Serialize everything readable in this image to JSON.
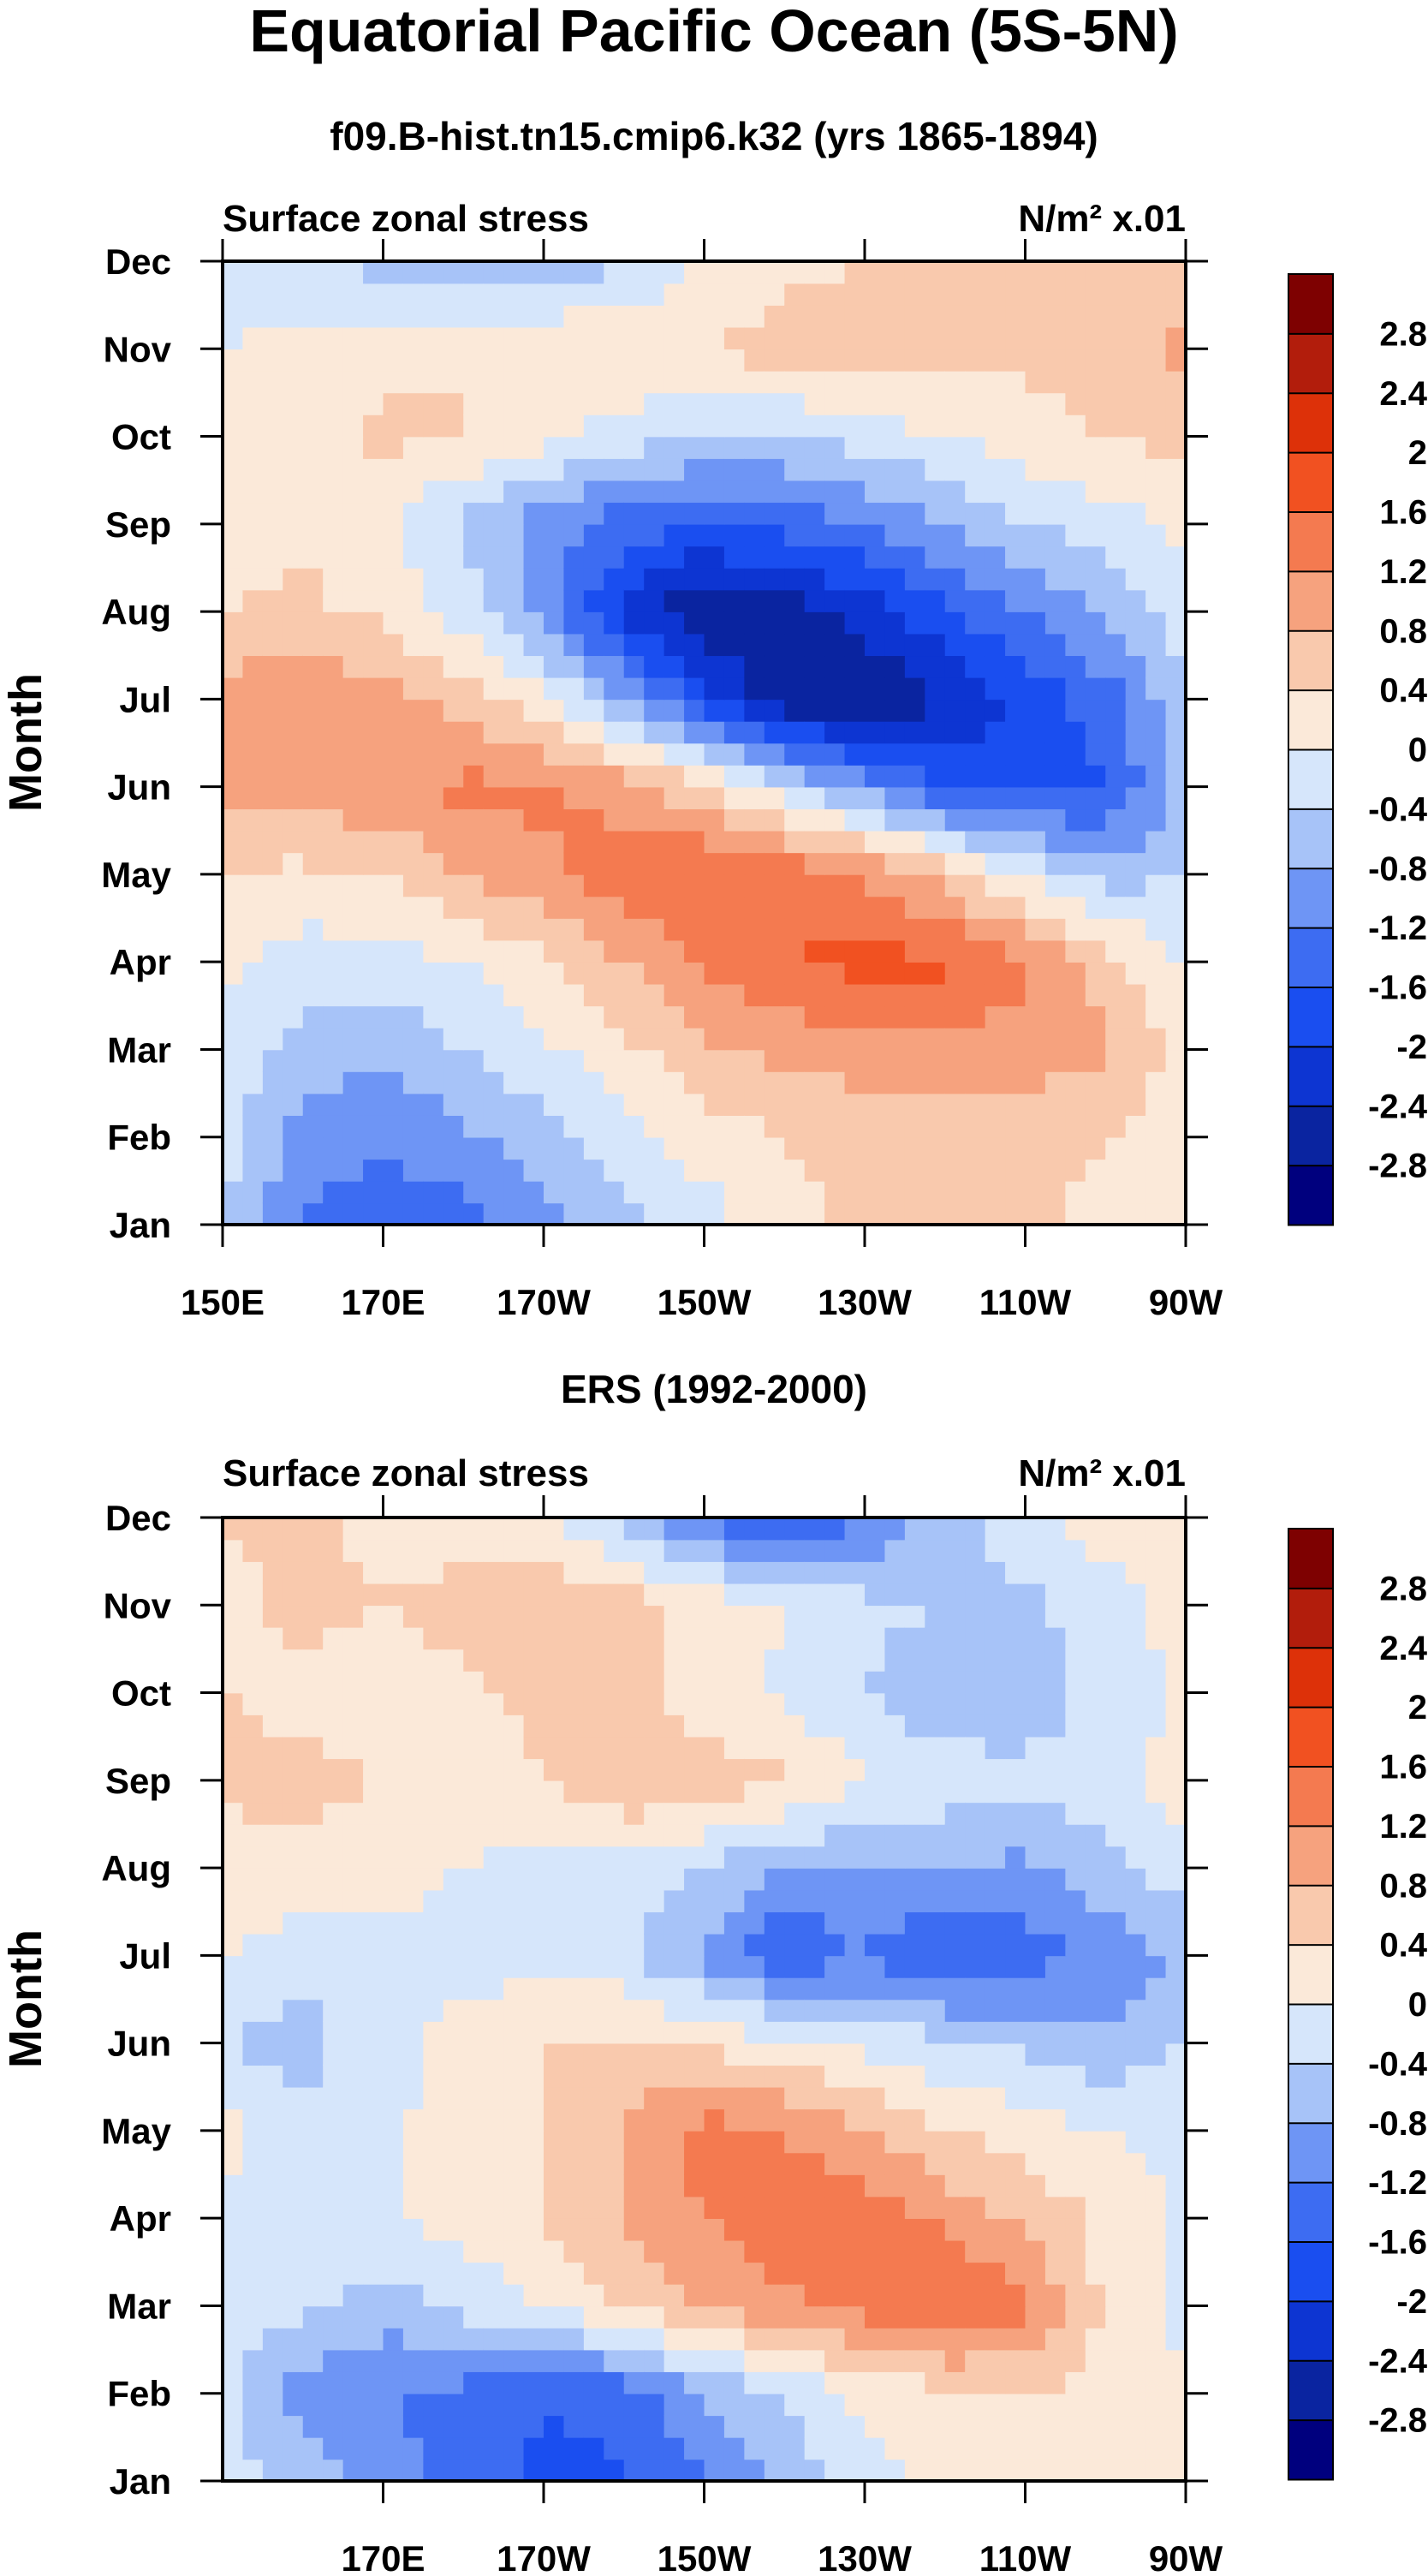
{
  "figure": {
    "title": "Equatorial Pacific Ocean (5S-5N)"
  },
  "colorbar": {
    "levels": [
      "-2.8",
      "-2.4",
      "-2",
      "-1.6",
      "-1.2",
      "-0.8",
      "-0.4",
      "0",
      "0.4",
      "0.8",
      "1.2",
      "1.6",
      "2",
      "2.4",
      "2.8"
    ],
    "colors": [
      "#00007e",
      "#0a24a0",
      "#0d35d2",
      "#1a4ef0",
      "#3d6cf2",
      "#6e95f5",
      "#a7c3f8",
      "#d6e6fb",
      "#fbe9d9",
      "#f9c9ad",
      "#f6a27e",
      "#f47a50",
      "#f15121",
      "#dd3109",
      "#b21d0c",
      "#7e0101"
    ]
  },
  "chart_data": [
    {
      "type": "heatmap",
      "title": "f09.B-hist.tn15.cmip6.k32 (yrs 1865-1894)",
      "left_label": "Surface zonal stress",
      "units_label": "N/m² x.01",
      "ylabel": "Month",
      "xlim": [
        150,
        270
      ],
      "x_ticks": [
        150,
        170,
        190,
        210,
        230,
        250,
        270
      ],
      "x_tick_labels": [
        "150E",
        "170E",
        "170W",
        "150W",
        "130W",
        "110W",
        "90W"
      ],
      "y_tick_labels": [
        "Jan",
        "Feb",
        "Mar",
        "Apr",
        "May",
        "Jun",
        "Jul",
        "Aug",
        "Sep",
        "Oct",
        "Nov",
        "Dec"
      ],
      "x": [
        150,
        160,
        170,
        180,
        190,
        200,
        210,
        220,
        230,
        240,
        250,
        260,
        270
      ],
      "values": [
        [
          -0.3,
          -1.2,
          -1.5,
          -1.4,
          -1.0,
          -0.5,
          -0.2,
          0.3,
          0.5,
          0.5,
          0.5,
          0.3,
          0.0
        ],
        [
          -0.3,
          -1.0,
          -1.1,
          -0.9,
          -0.6,
          -0.2,
          0.2,
          0.4,
          0.5,
          0.5,
          0.5,
          0.4,
          0.1
        ],
        [
          -0.1,
          -0.6,
          -0.7,
          -0.4,
          -0.1,
          0.3,
          0.7,
          0.9,
          1.0,
          1.1,
          1.0,
          0.9,
          0.2
        ],
        [
          0.1,
          -0.2,
          -0.2,
          0.0,
          0.3,
          0.8,
          1.3,
          1.6,
          1.7,
          1.7,
          1.3,
          0.6,
          -0.1
        ],
        [
          0.4,
          0.3,
          0.4,
          0.8,
          1.1,
          1.5,
          1.6,
          1.5,
          1.2,
          0.6,
          -0.1,
          -0.6,
          -0.4
        ],
        [
          0.9,
          1.0,
          1.1,
          1.3,
          1.3,
          1.0,
          0.5,
          -0.3,
          -1.0,
          -1.6,
          -1.8,
          -1.6,
          -0.7
        ],
        [
          1.0,
          1.1,
          1.0,
          0.6,
          0.1,
          -0.8,
          -1.8,
          -2.7,
          -2.8,
          -2.4,
          -1.9,
          -1.4,
          -0.5
        ],
        [
          0.4,
          0.5,
          0.3,
          -0.2,
          -1.0,
          -2.1,
          -2.8,
          -2.6,
          -2.2,
          -1.7,
          -1.2,
          -0.7,
          -0.2
        ],
        [
          0.2,
          0.3,
          0.1,
          -0.5,
          -1.0,
          -1.4,
          -1.6,
          -1.5,
          -1.2,
          -0.8,
          -0.4,
          -0.2,
          0.1
        ],
        [
          0.0,
          0.2,
          0.5,
          0.4,
          0.1,
          -0.2,
          -0.4,
          -0.4,
          -0.2,
          0.0,
          0.2,
          0.4,
          0.5
        ],
        [
          0.0,
          0.1,
          0.3,
          0.4,
          0.4,
          0.4,
          0.4,
          0.6,
          0.6,
          0.5,
          0.5,
          0.6,
          0.9
        ],
        [
          -0.1,
          -0.2,
          -0.6,
          -0.8,
          -0.8,
          -0.4,
          0.0,
          0.3,
          0.4,
          0.5,
          0.5,
          0.5,
          0.4
        ]
      ]
    },
    {
      "type": "heatmap",
      "title": "ERS (1992-2000)",
      "left_label": "Surface zonal stress",
      "units_label": "N/m² x.01",
      "ylabel": "Month",
      "xlim": [
        150,
        270
      ],
      "x_ticks": [
        170,
        190,
        210,
        230,
        250,
        270
      ],
      "x_tick_labels": [
        "170E",
        "170W",
        "150W",
        "130W",
        "110W",
        "90W"
      ],
      "y_tick_labels": [
        "Jan",
        "Feb",
        "Mar",
        "Apr",
        "May",
        "Jun",
        "Jul",
        "Aug",
        "Sep",
        "Oct",
        "Nov",
        "Dec"
      ],
      "x": [
        150,
        160,
        170,
        180,
        190,
        200,
        210,
        220,
        230,
        240,
        250,
        260,
        270
      ],
      "values": [
        [
          -0.2,
          -0.6,
          -1.0,
          -1.4,
          -1.7,
          -1.7,
          -1.2,
          -0.7,
          -0.2,
          0.2,
          0.3,
          0.2,
          0.0
        ],
        [
          -0.3,
          -1.0,
          -1.2,
          -1.3,
          -1.6,
          -1.4,
          -0.8,
          -0.4,
          0.1,
          0.3,
          0.4,
          0.3,
          0.0
        ],
        [
          -0.1,
          -0.3,
          -0.6,
          -0.3,
          0.0,
          0.4,
          0.9,
          1.1,
          1.4,
          1.7,
          1.3,
          0.3,
          -0.1
        ],
        [
          -0.1,
          -0.2,
          -0.1,
          0.2,
          0.4,
          0.8,
          1.2,
          1.5,
          1.5,
          1.1,
          0.7,
          0.3,
          -0.1
        ],
        [
          0.2,
          -0.3,
          -0.1,
          0.2,
          0.4,
          0.8,
          1.4,
          1.2,
          0.8,
          0.4,
          0.2,
          0.0,
          -0.1
        ],
        [
          -0.4,
          -0.6,
          -0.1,
          0.1,
          0.4,
          0.5,
          0.3,
          0.1,
          -0.1,
          -0.3,
          -0.5,
          -0.7,
          -0.4
        ],
        [
          0.0,
          -0.2,
          -0.1,
          -0.1,
          -0.2,
          -0.3,
          -0.9,
          -1.6,
          -1.2,
          -1.7,
          -1.4,
          -1.1,
          -0.7
        ],
        [
          0.2,
          0.3,
          0.1,
          0.0,
          -0.2,
          -0.2,
          -0.4,
          -0.8,
          -0.8,
          -0.7,
          -0.9,
          -0.5,
          -0.2
        ],
        [
          0.5,
          0.5,
          0.4,
          0.2,
          0.4,
          0.8,
          0.6,
          0.5,
          0.0,
          -0.2,
          -0.3,
          -0.2,
          0.2
        ],
        [
          0.4,
          0.3,
          0.2,
          0.3,
          0.5,
          0.5,
          0.2,
          -0.1,
          -0.4,
          -0.7,
          -0.6,
          -0.3,
          0.1
        ],
        [
          0.3,
          0.5,
          0.4,
          0.6,
          0.8,
          0.6,
          0.3,
          0.0,
          -0.3,
          -0.4,
          -0.5,
          -0.2,
          0.2
        ],
        [
          0.4,
          0.5,
          0.3,
          0.1,
          0.0,
          -0.6,
          -1.3,
          -1.8,
          -1.2,
          -0.6,
          -0.2,
          0.2,
          0.3
        ]
      ]
    }
  ]
}
